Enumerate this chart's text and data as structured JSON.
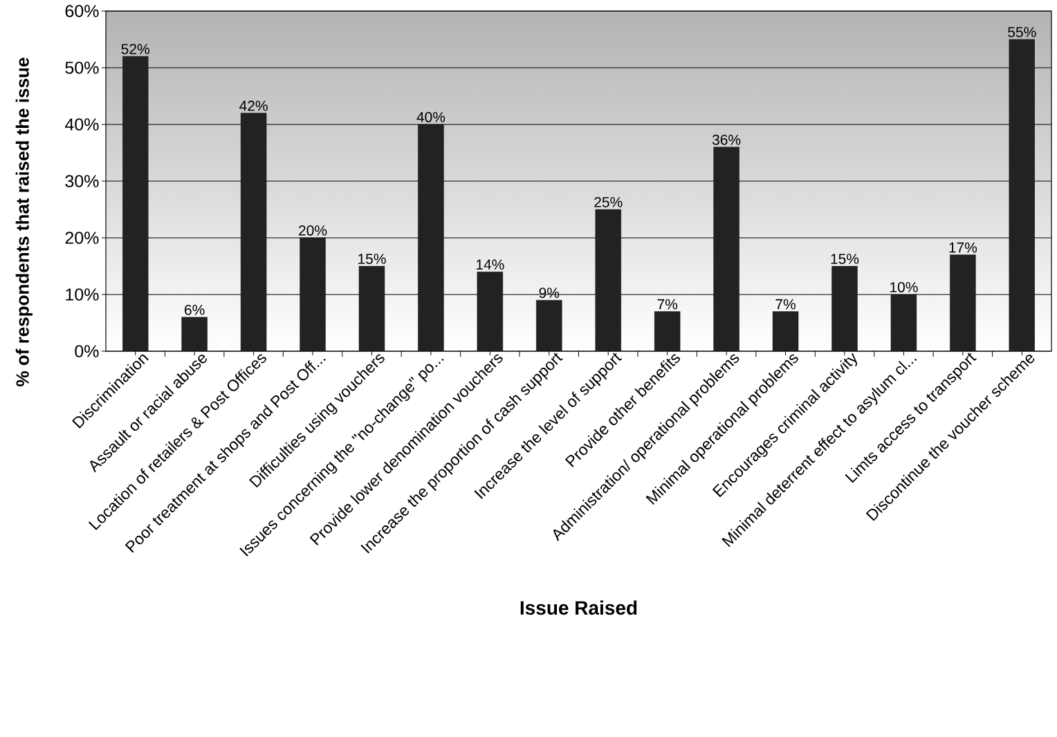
{
  "chart_data": {
    "type": "bar",
    "xlabel": "Issue Raised",
    "ylabel": "% of respondents that raised the issue",
    "categories": [
      "Discrimination",
      "Assault or racial abuse",
      "Location of retailers & Post Offices",
      "Poor treatment at shops and Post Off...",
      "Difficulties using vouchers",
      "Issues concerning the \"no-change\" po...",
      "Provide lower denomination vouchers",
      "Increase the proportion of cash support",
      "Increase the level of support",
      "Provide other benefits",
      "Administration/ operational problems",
      "Minimal operational problems",
      "Encourages criminal activity",
      "Minimal deterrent effect to asylum cl...",
      "Limts access to transport",
      "Discontinue the voucher scheme"
    ],
    "values": [
      52,
      6,
      42,
      20,
      15,
      40,
      14,
      9,
      25,
      7,
      36,
      7,
      15,
      10,
      17,
      55
    ],
    "value_labels": [
      "52%",
      "6%",
      "42%",
      "20%",
      "15%",
      "40%",
      "14%",
      "9%",
      "25%",
      "7%",
      "36%",
      "7%",
      "15%",
      "10%",
      "17%",
      "55%"
    ],
    "color": "#222222",
    "ylim": [
      0,
      60
    ],
    "yticks": [
      {
        "value": 0,
        "label": "0%"
      },
      {
        "value": 10,
        "label": "10%"
      },
      {
        "value": 20,
        "label": "20%"
      },
      {
        "value": 30,
        "label": "30%"
      },
      {
        "value": 40,
        "label": "40%"
      },
      {
        "value": 50,
        "label": "50%"
      },
      {
        "value": 60,
        "label": "60%"
      }
    ],
    "grid": "y"
  }
}
